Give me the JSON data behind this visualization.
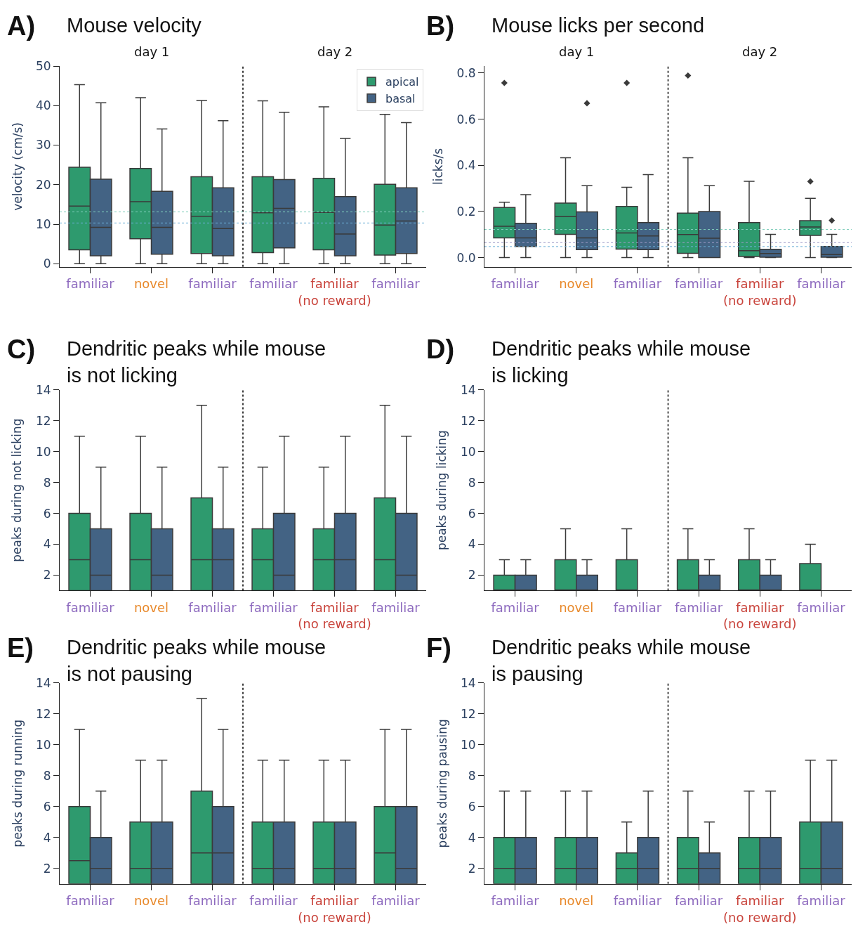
{
  "chart_data": [
    {
      "type": "box",
      "title": "Mouse velocity",
      "ylabel": "velocity (cm/s)",
      "annotations": [
        "A)",
        "day 1",
        "day 2"
      ],
      "categories": [
        "familiar",
        "novel",
        "familiar",
        "familiar",
        "familiar\n(no reward)",
        "familiar"
      ],
      "ylim": [
        -0.8,
        50
      ],
      "yticks": [
        0,
        10,
        20,
        30,
        40,
        50
      ],
      "legend": "top right",
      "ref_lines": [
        {
          "axis": "y",
          "value": 13.1,
          "color": "#7fcdbb",
          "line_style": "dotted"
        },
        {
          "axis": "y",
          "value": 10.3,
          "color": "#6baed6",
          "line_style": "dotted"
        }
      ],
      "series": [
        {
          "name": "apical",
          "color": "#2e9a6e",
          "boxes": [
            {
              "low": 0,
              "q1": 3.5,
              "median": 14.6,
              "q3": 24.4,
              "high": 45.3
            },
            {
              "low": 0,
              "q1": 6.3,
              "median": 15.7,
              "q3": 24.1,
              "high": 42.0
            },
            {
              "low": 0,
              "q1": 2.6,
              "median": 12.0,
              "q3": 22.0,
              "high": 41.3
            },
            {
              "low": 0,
              "q1": 2.8,
              "median": 12.9,
              "q3": 22.0,
              "high": 41.2
            },
            {
              "low": 0,
              "q1": 3.5,
              "median": 13.0,
              "q3": 21.6,
              "high": 39.7
            },
            {
              "low": 0,
              "q1": 2.2,
              "median": 9.8,
              "q3": 20.1,
              "high": 37.8
            }
          ]
        },
        {
          "name": "basal",
          "color": "#436384",
          "boxes": [
            {
              "low": 0,
              "q1": 2.0,
              "median": 9.2,
              "q3": 21.4,
              "high": 40.7
            },
            {
              "low": 0,
              "q1": 2.4,
              "median": 9.2,
              "q3": 18.3,
              "high": 34.1
            },
            {
              "low": 0,
              "q1": 2.0,
              "median": 8.9,
              "q3": 19.2,
              "high": 36.2
            },
            {
              "low": 0,
              "q1": 4.0,
              "median": 14.0,
              "q3": 21.3,
              "high": 38.3
            },
            {
              "low": 0,
              "q1": 2.0,
              "median": 7.5,
              "q3": 17.0,
              "high": 31.7
            },
            {
              "low": 0,
              "q1": 2.6,
              "median": 10.8,
              "q3": 19.2,
              "high": 35.7
            }
          ]
        }
      ]
    },
    {
      "type": "box",
      "title": "Mouse licks per second",
      "ylabel": "licks/s",
      "annotations": [
        "B)",
        "day 1",
        "day 2"
      ],
      "categories": [
        "familiar",
        "novel",
        "familiar",
        "familiar",
        "familiar\n(no reward)",
        "familiar"
      ],
      "ylim": [
        -0.04,
        0.83
      ],
      "yticks": [
        {
          "value": 0,
          "label": "0.0"
        },
        {
          "value": 0.2,
          "label": "0.2"
        },
        {
          "value": 0.4,
          "label": "0.4"
        },
        {
          "value": 0.6,
          "label": "0.6"
        },
        {
          "value": 0.8,
          "label": "0.8"
        }
      ],
      "ref_lines": [
        {
          "axis": "y",
          "value": 0.122,
          "color": "#7fcdbb",
          "line_style": "dotted"
        },
        {
          "axis": "y",
          "value": 0.065,
          "color": "#9e9ac8",
          "line_style": "dotted"
        },
        {
          "axis": "y",
          "value": 0.048,
          "color": "#6baed6",
          "line_style": "dotted"
        }
      ],
      "series": [
        {
          "color": "#2e9a6e",
          "boxes": [
            {
              "low": 0,
              "q1": 0.086,
              "median": 0.136,
              "q3": 0.217,
              "high": 0.24,
              "outliers": [
                0.757
              ]
            },
            {
              "low": 0,
              "q1": 0.101,
              "median": 0.178,
              "q3": 0.236,
              "high": 0.433
            },
            {
              "low": 0,
              "q1": 0.037,
              "median": 0.107,
              "q3": 0.222,
              "high": 0.305,
              "outliers": [
                0.757
              ]
            },
            {
              "low": 0,
              "q1": 0.019,
              "median": 0.1,
              "q3": 0.193,
              "high": 0.433,
              "outliers": [
                0.789
              ]
            },
            {
              "low": 0,
              "q1": 0.005,
              "median": 0.03,
              "q3": 0.152,
              "high": 0.331
            },
            {
              "low": 0,
              "q1": 0.096,
              "median": 0.133,
              "q3": 0.16,
              "high": 0.257,
              "outliers": [
                0.33
              ]
            }
          ]
        },
        {
          "color": "#436384",
          "boxes": [
            {
              "low": 0,
              "q1": 0.048,
              "median": 0.086,
              "q3": 0.149,
              "high": 0.273
            },
            {
              "low": 0,
              "q1": 0.035,
              "median": 0.086,
              "q3": 0.198,
              "high": 0.312,
              "outliers": [
                0.669
              ]
            },
            {
              "low": 0,
              "q1": 0.035,
              "median": 0.094,
              "q3": 0.152,
              "high": 0.36
            },
            {
              "low": 0,
              "q1": 0,
              "median": 0.084,
              "q3": 0.2,
              "high": 0.312
            },
            {
              "low": 0,
              "q1": 0.002,
              "median": 0.018,
              "q3": 0.036,
              "high": 0.101
            },
            {
              "low": 0,
              "q1": 0.002,
              "median": 0.013,
              "q3": 0.048,
              "high": 0.101,
              "outliers": [
                0.161
              ]
            }
          ]
        }
      ]
    },
    {
      "type": "box",
      "title": "Dendritic peaks while mouse\nis not licking",
      "ylabel": "peaks during not licking",
      "annotations": [
        "C)"
      ],
      "categories": [
        "familiar",
        "novel",
        "familiar",
        "familiar",
        "familiar\n(no reward)",
        "familiar"
      ],
      "ylim": [
        1,
        14
      ],
      "yticks": [
        2,
        4,
        6,
        8,
        10,
        12,
        14
      ],
      "series": [
        {
          "color": "#2e9a6e",
          "boxes": [
            {
              "low": 1,
              "q1": 1,
              "median": 3,
              "q3": 6,
              "high": 11
            },
            {
              "low": 1,
              "q1": 1,
              "median": 3,
              "q3": 6,
              "high": 11
            },
            {
              "low": 1,
              "q1": 1,
              "median": 3,
              "q3": 7,
              "high": 13
            },
            {
              "low": 1,
              "q1": 1,
              "median": 3,
              "q3": 5,
              "high": 9
            },
            {
              "low": 1,
              "q1": 1,
              "median": 3,
              "q3": 5,
              "high": 9
            },
            {
              "low": 1,
              "q1": 1,
              "median": 3,
              "q3": 7,
              "high": 13
            }
          ]
        },
        {
          "color": "#436384",
          "boxes": [
            {
              "low": 1,
              "q1": 1,
              "median": 2,
              "q3": 5,
              "high": 9
            },
            {
              "low": 1,
              "q1": 1,
              "median": 2,
              "q3": 5,
              "high": 9
            },
            {
              "low": 1,
              "q1": 1,
              "median": 3,
              "q3": 5,
              "high": 9
            },
            {
              "low": 1,
              "q1": 1,
              "median": 2,
              "q3": 6,
              "high": 11
            },
            {
              "low": 1,
              "q1": 1,
              "median": 3,
              "q3": 6,
              "high": 11
            },
            {
              "low": 1,
              "q1": 1,
              "median": 2,
              "q3": 6,
              "high": 11
            }
          ]
        }
      ]
    },
    {
      "type": "box",
      "title": "Dendritic peaks while mouse\nis licking",
      "ylabel": "peaks during licking",
      "annotations": [
        "D)"
      ],
      "categories": [
        "familiar",
        "novel",
        "familiar",
        "familiar",
        "familiar\n(no reward)",
        "familiar"
      ],
      "ylim": [
        1,
        14
      ],
      "yticks": [
        2,
        4,
        6,
        8,
        10,
        12,
        14
      ],
      "series": [
        {
          "color": "#2e9a6e",
          "boxes": [
            {
              "low": 1,
              "q1": 1,
              "median": 1,
              "q3": 2,
              "high": 3
            },
            {
              "low": 1,
              "q1": 1,
              "median": 1,
              "q3": 3,
              "high": 5
            },
            {
              "low": 1,
              "q1": 1,
              "median": 1,
              "q3": 3,
              "high": 5
            },
            {
              "low": 1,
              "q1": 1,
              "median": 1,
              "q3": 3,
              "high": 5
            },
            {
              "low": 1,
              "q1": 1,
              "median": 1,
              "q3": 3,
              "high": 5
            },
            {
              "low": 1,
              "q1": 1,
              "median": 1,
              "q3": 2.75,
              "high": 4
            }
          ]
        },
        {
          "color": "#436384",
          "boxes": [
            {
              "low": 1,
              "q1": 1,
              "median": 1,
              "q3": 2,
              "high": 3
            },
            {
              "low": 1,
              "q1": 1,
              "median": 1,
              "q3": 2,
              "high": 3
            },
            null,
            {
              "low": 1,
              "q1": 1,
              "median": 1,
              "q3": 2,
              "high": 3
            },
            {
              "low": 1,
              "q1": 1,
              "median": 1,
              "q3": 2,
              "high": 3
            },
            null
          ]
        }
      ]
    },
    {
      "type": "box",
      "title": "Dendritic peaks while mouse\nis not pausing",
      "ylabel": "peaks during running",
      "annotations": [
        "E)"
      ],
      "categories": [
        "familiar",
        "novel",
        "familiar",
        "familiar",
        "familiar\n(no reward)",
        "familiar"
      ],
      "ylim": [
        1,
        14
      ],
      "yticks": [
        2,
        4,
        6,
        8,
        10,
        12,
        14
      ],
      "series": [
        {
          "color": "#2e9a6e",
          "boxes": [
            {
              "low": 1,
              "q1": 1,
              "median": 2.5,
              "q3": 6,
              "high": 11
            },
            {
              "low": 1,
              "q1": 1,
              "median": 2,
              "q3": 5,
              "high": 9
            },
            {
              "low": 1,
              "q1": 1,
              "median": 3,
              "q3": 7,
              "high": 13
            },
            {
              "low": 1,
              "q1": 1,
              "median": 2,
              "q3": 5,
              "high": 9
            },
            {
              "low": 1,
              "q1": 1,
              "median": 2,
              "q3": 5,
              "high": 9
            },
            {
              "low": 1,
              "q1": 1,
              "median": 3,
              "q3": 6,
              "high": 11
            }
          ]
        },
        {
          "color": "#436384",
          "boxes": [
            {
              "low": 1,
              "q1": 1,
              "median": 2,
              "q3": 4,
              "high": 7
            },
            {
              "low": 1,
              "q1": 1,
              "median": 2,
              "q3": 5,
              "high": 9
            },
            {
              "low": 1,
              "q1": 1,
              "median": 3,
              "q3": 6,
              "high": 11
            },
            {
              "low": 1,
              "q1": 1,
              "median": 2,
              "q3": 5,
              "high": 9
            },
            {
              "low": 1,
              "q1": 1,
              "median": 2,
              "q3": 5,
              "high": 9
            },
            {
              "low": 1,
              "q1": 1,
              "median": 2,
              "q3": 6,
              "high": 11
            }
          ]
        }
      ]
    },
    {
      "type": "box",
      "title": "Dendritic peaks while mouse\nis pausing",
      "ylabel": "peaks during pausing",
      "annotations": [
        "F)"
      ],
      "categories": [
        "familiar",
        "novel",
        "familiar",
        "familiar",
        "familiar\n(no reward)",
        "familiar"
      ],
      "ylim": [
        1,
        14
      ],
      "yticks": [
        2,
        4,
        6,
        8,
        10,
        12,
        14
      ],
      "series": [
        {
          "color": "#2e9a6e",
          "boxes": [
            {
              "low": 1,
              "q1": 1,
              "median": 2,
              "q3": 4,
              "high": 7
            },
            {
              "low": 1,
              "q1": 1,
              "median": 2,
              "q3": 4,
              "high": 7
            },
            {
              "low": 1,
              "q1": 1,
              "median": 2,
              "q3": 3,
              "high": 5
            },
            {
              "low": 1,
              "q1": 1,
              "median": 2,
              "q3": 4,
              "high": 7
            },
            {
              "low": 1,
              "q1": 1,
              "median": 2,
              "q3": 4,
              "high": 7
            },
            {
              "low": 1,
              "q1": 1,
              "median": 2,
              "q3": 5,
              "high": 9
            }
          ]
        },
        {
          "color": "#436384",
          "boxes": [
            {
              "low": 1,
              "q1": 1,
              "median": 2,
              "q3": 4,
              "high": 7
            },
            {
              "low": 1,
              "q1": 1,
              "median": 2,
              "q3": 4,
              "high": 7
            },
            {
              "low": 1,
              "q1": 1,
              "median": 2,
              "q3": 4,
              "high": 7
            },
            {
              "low": 1,
              "q1": 1,
              "median": 2,
              "q3": 3,
              "high": 5
            },
            {
              "low": 1,
              "q1": 1,
              "median": 2,
              "q3": 4,
              "high": 7
            },
            {
              "low": 1,
              "q1": 1,
              "median": 2,
              "q3": 5,
              "high": 9
            }
          ]
        }
      ]
    }
  ]
}
